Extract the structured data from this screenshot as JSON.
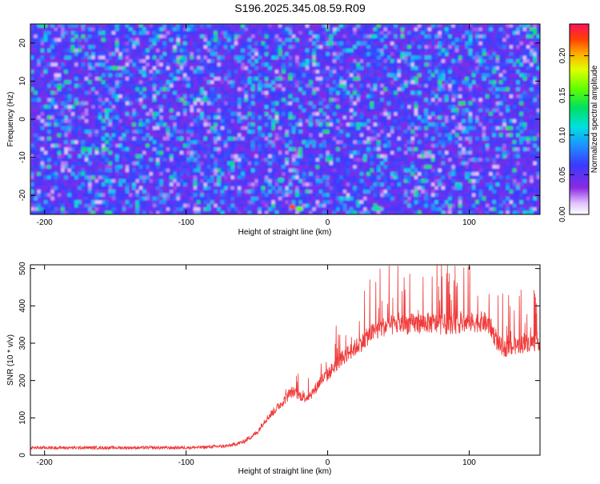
{
  "title": "S196.2025.345.08.59.R09",
  "chart_data": [
    {
      "type": "heatmap",
      "title": "S196.2025.345.08.59.R09",
      "xlabel": "Height of straight line (km)",
      "ylabel": "Frequency (Hz)",
      "xlim": [
        -210,
        150
      ],
      "ylim": [
        -25,
        25
      ],
      "xticks": [
        -200,
        -100,
        0,
        100
      ],
      "yticks": [
        20,
        10,
        0,
        -10,
        -20
      ],
      "colorbar": {
        "label": "Normalized spectral amplitude",
        "range": [
          0,
          0.24
        ],
        "ticks": [
          "0.00",
          "0.05",
          "0.10",
          "0.15",
          "0.20"
        ],
        "colormap": "rainbow"
      },
      "notes": "Dense noisy spectrogram, mostly 0.02-0.08 amplitude (purple/blue) with scattered cyan-green peaks; strongest peak (~0.22, red) near x=-25 km, f=-23 Hz."
    },
    {
      "type": "line",
      "xlabel": "Height of straight line (km)",
      "ylabel": "SNR (10 * v/v)",
      "xlim": [
        -210,
        150
      ],
      "ylim": [
        0,
        510
      ],
      "xticks": [
        -200,
        -100,
        0,
        100
      ],
      "yticks": [
        0,
        100,
        200,
        300,
        400,
        500
      ],
      "series": [
        {
          "name": "SNR",
          "color": "#f03a3a",
          "x": [
            -210,
            -190,
            -170,
            -150,
            -130,
            -110,
            -90,
            -70,
            -60,
            -50,
            -45,
            -40,
            -35,
            -30,
            -25,
            -20,
            -15,
            -10,
            -5,
            0,
            5,
            10,
            15,
            20,
            25,
            30,
            40,
            50,
            60,
            70,
            80,
            90,
            100,
            110,
            115,
            120,
            125,
            130,
            140,
            150
          ],
          "y": [
            20,
            20,
            20,
            20,
            20,
            20,
            21,
            25,
            35,
            60,
            90,
            110,
            130,
            150,
            170,
            160,
            155,
            170,
            200,
            215,
            240,
            260,
            275,
            290,
            305,
            325,
            345,
            350,
            352,
            355,
            350,
            352,
            355,
            358,
            345,
            300,
            285,
            290,
            300,
            305
          ]
        }
      ]
    }
  ]
}
